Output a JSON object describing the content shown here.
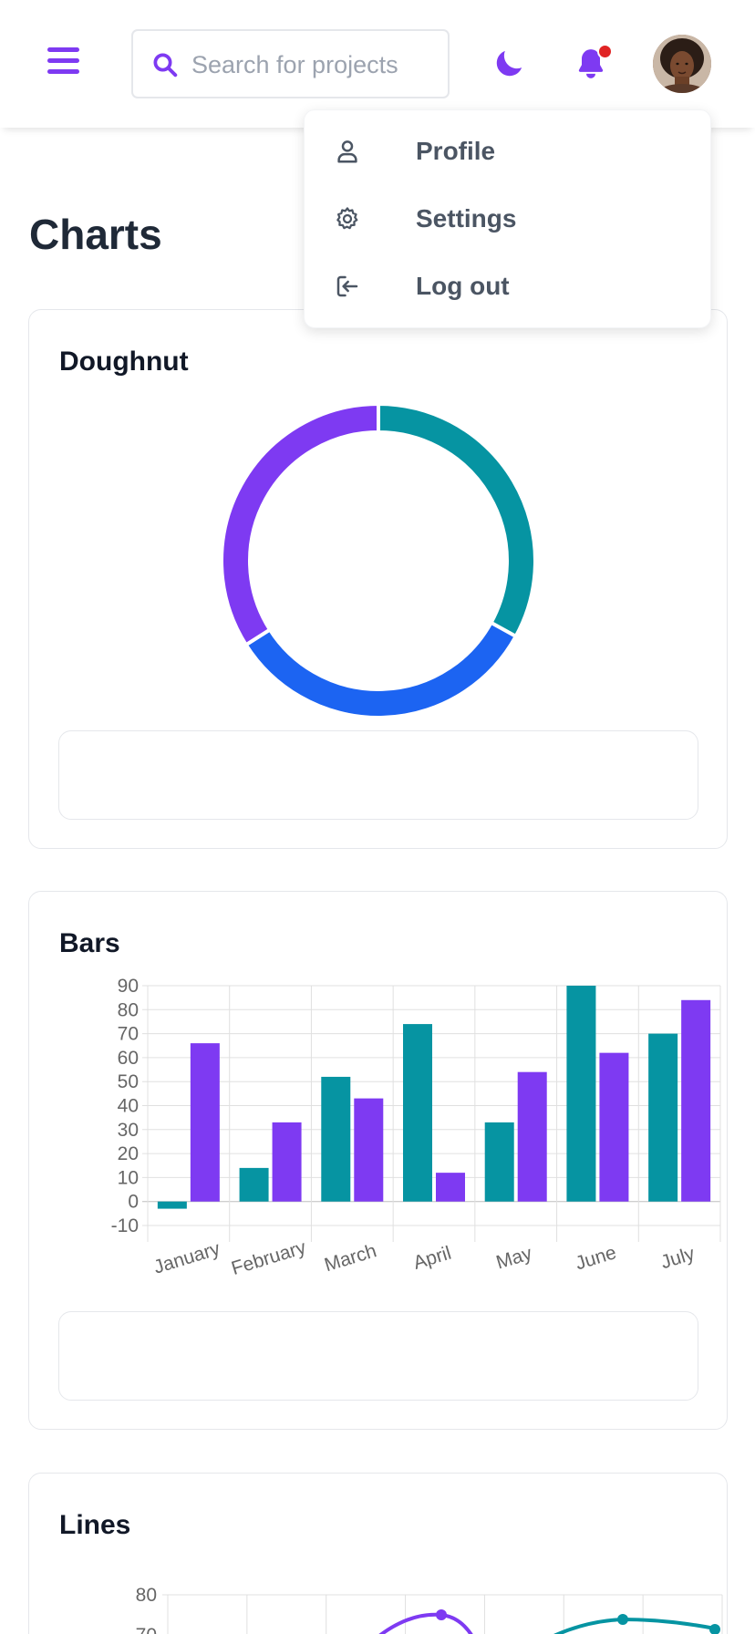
{
  "header": {
    "search_placeholder": "Search for projects"
  },
  "icons": {
    "menu": "hamburger-icon",
    "search": "search-icon",
    "theme": "moon-icon",
    "notifications": "bell-icon",
    "avatar": "avatar"
  },
  "dropdown": {
    "items": [
      {
        "label": "Profile",
        "icon": "user-icon"
      },
      {
        "label": "Settings",
        "icon": "gear-icon"
      },
      {
        "label": "Log out",
        "icon": "logout-icon"
      }
    ]
  },
  "page": {
    "title": "Charts"
  },
  "colors": {
    "teal": "#0694a2",
    "purple": "#7e3af2",
    "blue": "#1c64f2",
    "notification": "#e02424"
  },
  "doughnut": {
    "title": "Doughnut"
  },
  "bars": {
    "title": "Bars"
  },
  "lines": {
    "title": "Lines"
  },
  "chart_data": [
    {
      "type": "pie",
      "variant": "doughnut",
      "title": "Doughnut",
      "values": [
        33,
        33,
        34
      ],
      "colors": [
        "#0694a2",
        "#1c64f2",
        "#7e3af2"
      ]
    },
    {
      "type": "bar",
      "title": "Bars",
      "categories": [
        "January",
        "February",
        "March",
        "April",
        "May",
        "June",
        "July"
      ],
      "series": [
        {
          "values": [
            -3,
            14,
            52,
            74,
            33,
            90,
            70
          ],
          "color": "#0694a2"
        },
        {
          "values": [
            66,
            33,
            43,
            12,
            54,
            62,
            84
          ],
          "color": "#7e3af2"
        }
      ],
      "ylim": [
        -10,
        90
      ],
      "yticks": [
        90,
        80,
        70,
        60,
        50,
        40,
        30,
        20,
        10,
        0,
        -10
      ],
      "grid": true
    },
    {
      "type": "line",
      "title": "Lines",
      "yticks_visible": [
        80,
        70
      ],
      "partial": true
    }
  ]
}
